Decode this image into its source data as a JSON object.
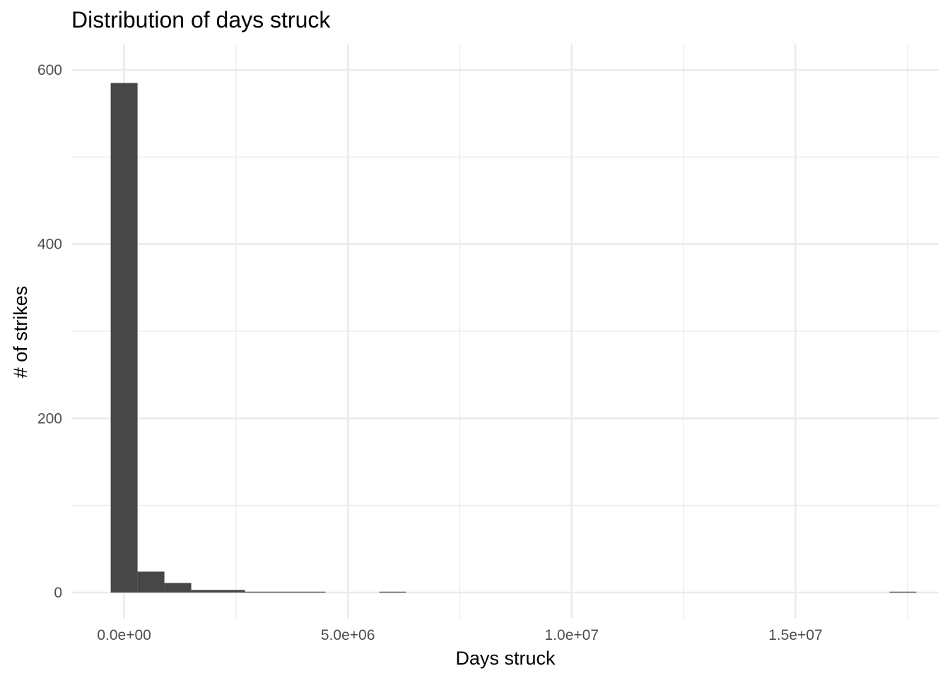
{
  "chart_data": {
    "type": "bar",
    "title": "Distribution of days struck",
    "xlabel": "Days struck",
    "ylabel": "# of strikes",
    "grid": true,
    "legend": "none",
    "xlim": [
      -1178000,
      18200000
    ],
    "ylim": [
      -30,
      630
    ],
    "x_ticks": [
      0,
      5000000,
      10000000,
      15000000
    ],
    "x_tick_labels": [
      "0.0e+00",
      "5.0e+06",
      "1.0e+07",
      "1.5e+07"
    ],
    "x_minor_ticks": [
      2500000,
      7500000,
      12500000,
      17500000
    ],
    "y_ticks": [
      0,
      200,
      400,
      600
    ],
    "y_tick_labels": [
      "0",
      "200",
      "400",
      "600"
    ],
    "y_minor_ticks": [
      100,
      300,
      500
    ],
    "bar_color": "#474747",
    "bins": [
      {
        "x0": -300000,
        "x1": 300000,
        "count": 585
      },
      {
        "x0": 300000,
        "x1": 900000,
        "count": 24
      },
      {
        "x0": 900000,
        "x1": 1500000,
        "count": 11
      },
      {
        "x0": 1500000,
        "x1": 2100000,
        "count": 3
      },
      {
        "x0": 2100000,
        "x1": 2700000,
        "count": 3
      },
      {
        "x0": 2700000,
        "x1": 3300000,
        "count": 1
      },
      {
        "x0": 3300000,
        "x1": 3900000,
        "count": 1
      },
      {
        "x0": 3900000,
        "x1": 4500000,
        "count": 1
      },
      {
        "x0": 5700000,
        "x1": 6300000,
        "count": 1
      },
      {
        "x0": 17100000,
        "x1": 17700000,
        "count": 1
      }
    ]
  }
}
